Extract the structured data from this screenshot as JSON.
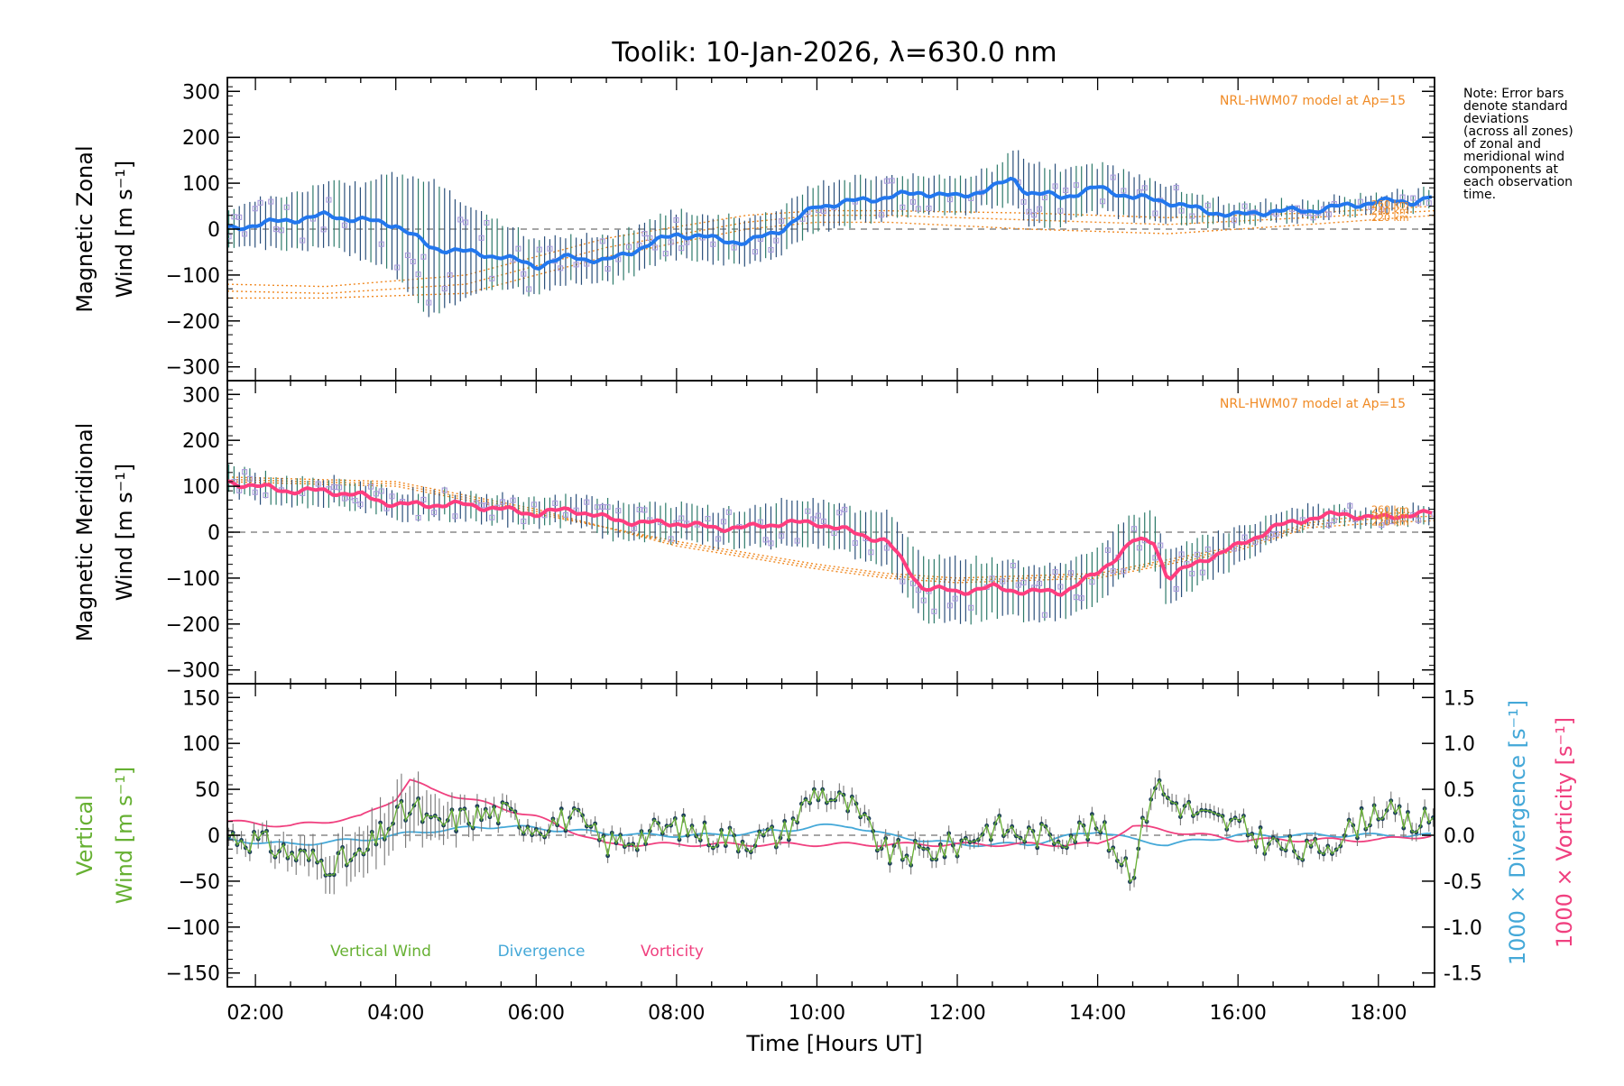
{
  "title": "Toolik: 10-Jan-2026, λ=630.0 nm",
  "colors": {
    "zonal_line": "#2277ee",
    "meridional_line": "#ff3d7f",
    "vertical_wind": "#66b032",
    "divergence": "#44a8d8",
    "vorticity": "#f0407f",
    "model": "#f08a24",
    "scatter": "#a99bdc",
    "errbar": "#2a4f7a"
  },
  "note": [
    "Note: Error bars",
    "denote standard",
    "deviations",
    "(across all zones)",
    "of zonal and",
    "meridional wind",
    "components at",
    "each observation",
    "time."
  ],
  "chart_data": [
    {
      "type": "line",
      "panel": "zonal",
      "ylabel_lines": [
        "Magnetic Zonal",
        "Wind [m s⁻¹]"
      ],
      "ylim": [
        -330,
        330
      ],
      "yticks": [
        -300,
        -200,
        -100,
        0,
        100,
        200,
        300
      ],
      "xlim": [
        1.6,
        18.8
      ],
      "model_label": "NRL-HWM07 model at Ap=15",
      "model_height_labels": [
        "260 km",
        "240 km",
        "220 km"
      ],
      "series": [
        {
          "name": "Magnetic Zonal Wind",
          "x": [
            1.6,
            2.0,
            2.5,
            3.0,
            3.5,
            4.0,
            4.5,
            5.0,
            5.5,
            6.0,
            6.5,
            7.0,
            7.5,
            8.0,
            8.5,
            9.0,
            9.5,
            10.0,
            10.5,
            11.0,
            11.5,
            12.0,
            12.5,
            12.8,
            13.0,
            13.5,
            14.0,
            14.5,
            15.0,
            15.5,
            16.0,
            16.5,
            17.0,
            17.5,
            18.0,
            18.5,
            18.8
          ],
          "y": [
            0,
            10,
            20,
            30,
            20,
            10,
            -40,
            -50,
            -60,
            -80,
            -60,
            -70,
            -40,
            -10,
            -20,
            -30,
            0,
            50,
            60,
            70,
            80,
            70,
            90,
            110,
            80,
            70,
            90,
            70,
            60,
            40,
            30,
            40,
            40,
            50,
            60,
            60,
            70
          ],
          "error": [
            40,
            50,
            60,
            70,
            80,
            110,
            150,
            100,
            70,
            60,
            50,
            50,
            50,
            50,
            50,
            50,
            50,
            50,
            50,
            45,
            40,
            40,
            40,
            60,
            70,
            60,
            50,
            50,
            40,
            30,
            25,
            20,
            20,
            20,
            20,
            20,
            20
          ]
        },
        {
          "name": "Model 220 km",
          "x": [
            1.6,
            3.0,
            5.0,
            7.0,
            9.0,
            10.0,
            11.0,
            13.0,
            15.0,
            17.0,
            18.8
          ],
          "y": [
            -150,
            -150,
            -140,
            -60,
            0,
            15,
            15,
            0,
            -10,
            10,
            30
          ]
        },
        {
          "name": "Model 240 km",
          "x": [
            1.6,
            3.0,
            5.0,
            7.0,
            9.0,
            10.0,
            11.0,
            13.0,
            15.0,
            17.0,
            18.8
          ],
          "y": [
            -135,
            -140,
            -120,
            -40,
            15,
            30,
            30,
            20,
            10,
            25,
            40
          ]
        },
        {
          "name": "Model 260 km",
          "x": [
            1.6,
            3.0,
            5.0,
            7.0,
            9.0,
            10.0,
            11.0,
            13.0,
            15.0,
            17.0,
            18.8
          ],
          "y": [
            -120,
            -125,
            -100,
            -20,
            30,
            40,
            40,
            35,
            25,
            35,
            50
          ]
        }
      ]
    },
    {
      "type": "line",
      "panel": "meridional",
      "ylabel_lines": [
        "Magnetic Meridional",
        "Wind [m s⁻¹]"
      ],
      "ylim": [
        -330,
        330
      ],
      "yticks": [
        -300,
        -200,
        -100,
        0,
        100,
        200,
        300
      ],
      "xlim": [
        1.6,
        18.8
      ],
      "model_label": "NRL-HWM07 model at Ap=15",
      "model_height_labels": [
        "260 km",
        "240 km",
        "220 km"
      ],
      "series": [
        {
          "name": "Magnetic Meridional Wind",
          "x": [
            1.6,
            2.0,
            2.5,
            3.0,
            3.5,
            4.0,
            4.5,
            5.0,
            5.5,
            6.0,
            6.5,
            7.0,
            7.5,
            8.0,
            8.5,
            9.0,
            9.5,
            10.0,
            10.5,
            11.0,
            11.5,
            12.0,
            12.5,
            13.0,
            13.5,
            14.0,
            14.5,
            14.8,
            15.0,
            15.5,
            16.0,
            16.5,
            17.0,
            17.5,
            18.0,
            18.5,
            18.8
          ],
          "y": [
            110,
            100,
            90,
            90,
            80,
            60,
            60,
            60,
            50,
            40,
            50,
            30,
            20,
            20,
            10,
            10,
            20,
            20,
            0,
            -20,
            -120,
            -130,
            -120,
            -130,
            -130,
            -90,
            -20,
            -20,
            -100,
            -60,
            -30,
            10,
            30,
            40,
            30,
            40,
            40
          ],
          "error": [
            30,
            30,
            30,
            30,
            30,
            30,
            30,
            30,
            30,
            30,
            30,
            40,
            40,
            40,
            40,
            40,
            50,
            50,
            50,
            60,
            70,
            70,
            60,
            60,
            60,
            60,
            60,
            60,
            60,
            50,
            40,
            30,
            25,
            20,
            20,
            20,
            20
          ]
        },
        {
          "name": "Model 220 km",
          "x": [
            1.6,
            4.0,
            6.0,
            8.0,
            10.0,
            11.0,
            12.0,
            14.0,
            16.0,
            17.0,
            18.0,
            18.8
          ],
          "y": [
            120,
            110,
            50,
            -30,
            -80,
            -100,
            -110,
            -100,
            -40,
            10,
            20,
            25
          ]
        },
        {
          "name": "Model 240 km",
          "x": [
            1.6,
            4.0,
            6.0,
            8.0,
            10.0,
            11.0,
            12.0,
            14.0,
            16.0,
            17.0,
            18.0,
            18.8
          ],
          "y": [
            115,
            105,
            45,
            -25,
            -75,
            -95,
            -105,
            -95,
            -35,
            15,
            30,
            35
          ]
        },
        {
          "name": "Model 260 km",
          "x": [
            1.6,
            4.0,
            6.0,
            8.0,
            10.0,
            11.0,
            12.0,
            14.0,
            16.0,
            17.0,
            18.0,
            18.8
          ],
          "y": [
            110,
            100,
            40,
            -20,
            -70,
            -90,
            -100,
            -90,
            -30,
            20,
            40,
            45
          ]
        }
      ]
    },
    {
      "type": "line",
      "panel": "vertical",
      "ylabel_lines": [
        "Vertical",
        "Wind [m s⁻¹]"
      ],
      "ylim": [
        -165,
        165
      ],
      "yticks": [
        -150,
        -100,
        -50,
        0,
        50,
        100,
        150
      ],
      "right_ylim": [
        -1.65,
        1.65
      ],
      "right_yticks": [
        -1.5,
        -1.0,
        -0.5,
        0.0,
        0.5,
        1.0,
        1.5
      ],
      "right_ylabel_div": "1000 × Divergence [s⁻¹]",
      "right_ylabel_vort": "1000 × Vorticity [s⁻¹]",
      "xlim": [
        1.6,
        18.8
      ],
      "xticks": [
        2,
        4,
        6,
        8,
        10,
        12,
        14,
        16,
        18
      ],
      "xtick_labels": [
        "02:00",
        "04:00",
        "06:00",
        "08:00",
        "10:00",
        "12:00",
        "14:00",
        "16:00",
        "18:00"
      ],
      "xlabel": "Time [Hours UT]",
      "legend": [
        "Vertical Wind",
        "Divergence",
        "Vorticity"
      ],
      "series": [
        {
          "name": "Vertical Wind",
          "x": [
            1.6,
            2.0,
            2.5,
            3.0,
            3.5,
            4.0,
            4.3,
            4.5,
            5.0,
            5.5,
            6.0,
            6.5,
            7.0,
            7.5,
            8.0,
            8.5,
            9.0,
            9.5,
            10.0,
            10.5,
            11.0,
            11.5,
            12.0,
            12.5,
            13.0,
            13.5,
            14.0,
            14.5,
            14.8,
            15.0,
            15.5,
            16.0,
            16.5,
            17.0,
            17.5,
            18.0,
            18.5,
            18.8
          ],
          "y": [
            0,
            -5,
            -20,
            -30,
            -25,
            20,
            30,
            10,
            20,
            25,
            10,
            20,
            -10,
            0,
            10,
            0,
            -5,
            0,
            50,
            30,
            -20,
            -20,
            -10,
            10,
            0,
            0,
            10,
            -40,
            60,
            40,
            20,
            10,
            -10,
            -20,
            0,
            30,
            10,
            20
          ],
          "error": [
            10,
            10,
            15,
            20,
            25,
            30,
            30,
            25,
            15,
            10,
            8,
            8,
            8,
            8,
            8,
            8,
            8,
            8,
            10,
            10,
            10,
            10,
            8,
            8,
            8,
            8,
            8,
            10,
            12,
            10,
            8,
            8,
            8,
            8,
            8,
            10,
            10,
            10
          ]
        },
        {
          "name": "1000 × Divergence",
          "x": [
            1.6,
            2.5,
            3.5,
            4.5,
            5.5,
            6.5,
            7.5,
            8.5,
            9.5,
            10.0,
            10.5,
            11.0,
            12.0,
            13.0,
            14.0,
            14.5,
            15.0,
            16.0,
            17.0,
            18.0,
            18.8
          ],
          "y": [
            -0.05,
            -0.1,
            -0.05,
            0.05,
            0.1,
            0.05,
            0.0,
            0.0,
            0.05,
            0.1,
            0.1,
            0.0,
            -0.1,
            -0.1,
            0.05,
            -0.05,
            -0.1,
            0.0,
            0.0,
            0.0,
            0.0
          ]
        },
        {
          "name": "1000 × Vorticity",
          "x": [
            1.6,
            2.5,
            3.5,
            4.0,
            4.2,
            4.5,
            5.0,
            5.5,
            6.0,
            6.5,
            7.0,
            8.0,
            9.0,
            10.0,
            11.0,
            12.0,
            13.0,
            14.0,
            14.5,
            15.0,
            16.0,
            17.0,
            18.0,
            18.8
          ],
          "y": [
            0.15,
            0.1,
            0.2,
            0.4,
            0.6,
            0.5,
            0.4,
            0.3,
            0.2,
            0.05,
            -0.1,
            -0.1,
            -0.1,
            -0.1,
            -0.1,
            -0.1,
            -0.1,
            -0.1,
            0.1,
            0.05,
            -0.05,
            -0.05,
            -0.05,
            0.0
          ]
        }
      ]
    }
  ]
}
